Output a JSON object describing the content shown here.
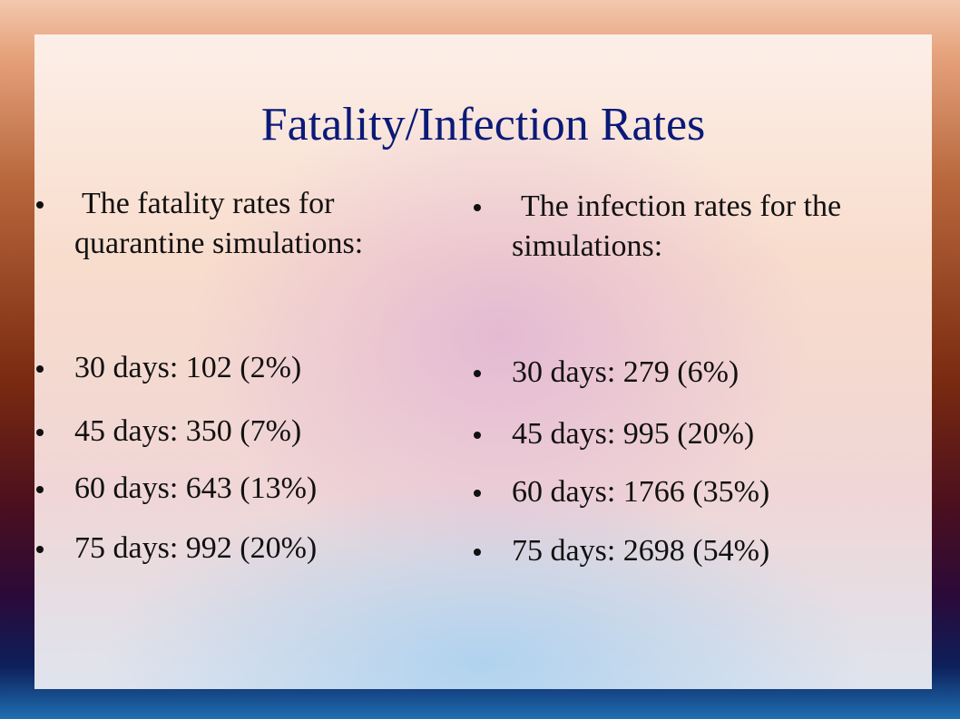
{
  "slide": {
    "title": "Fatality/Infection Rates",
    "left_column": {
      "intro": "The fatality rates for quarantine simulations:",
      "items": [
        "30 days: 102 (2%)",
        "45 days: 350 (7%)",
        "60 days: 643 (13%)",
        "75 days: 992 (20%)"
      ]
    },
    "right_column": {
      "intro": "The infection rates for the simulations:",
      "items": [
        "30 days: 279 (6%)",
        "45 days: 995 (20%)",
        "60 days: 1766 (35%)",
        "75 days: 2698 (54%)"
      ]
    }
  }
}
